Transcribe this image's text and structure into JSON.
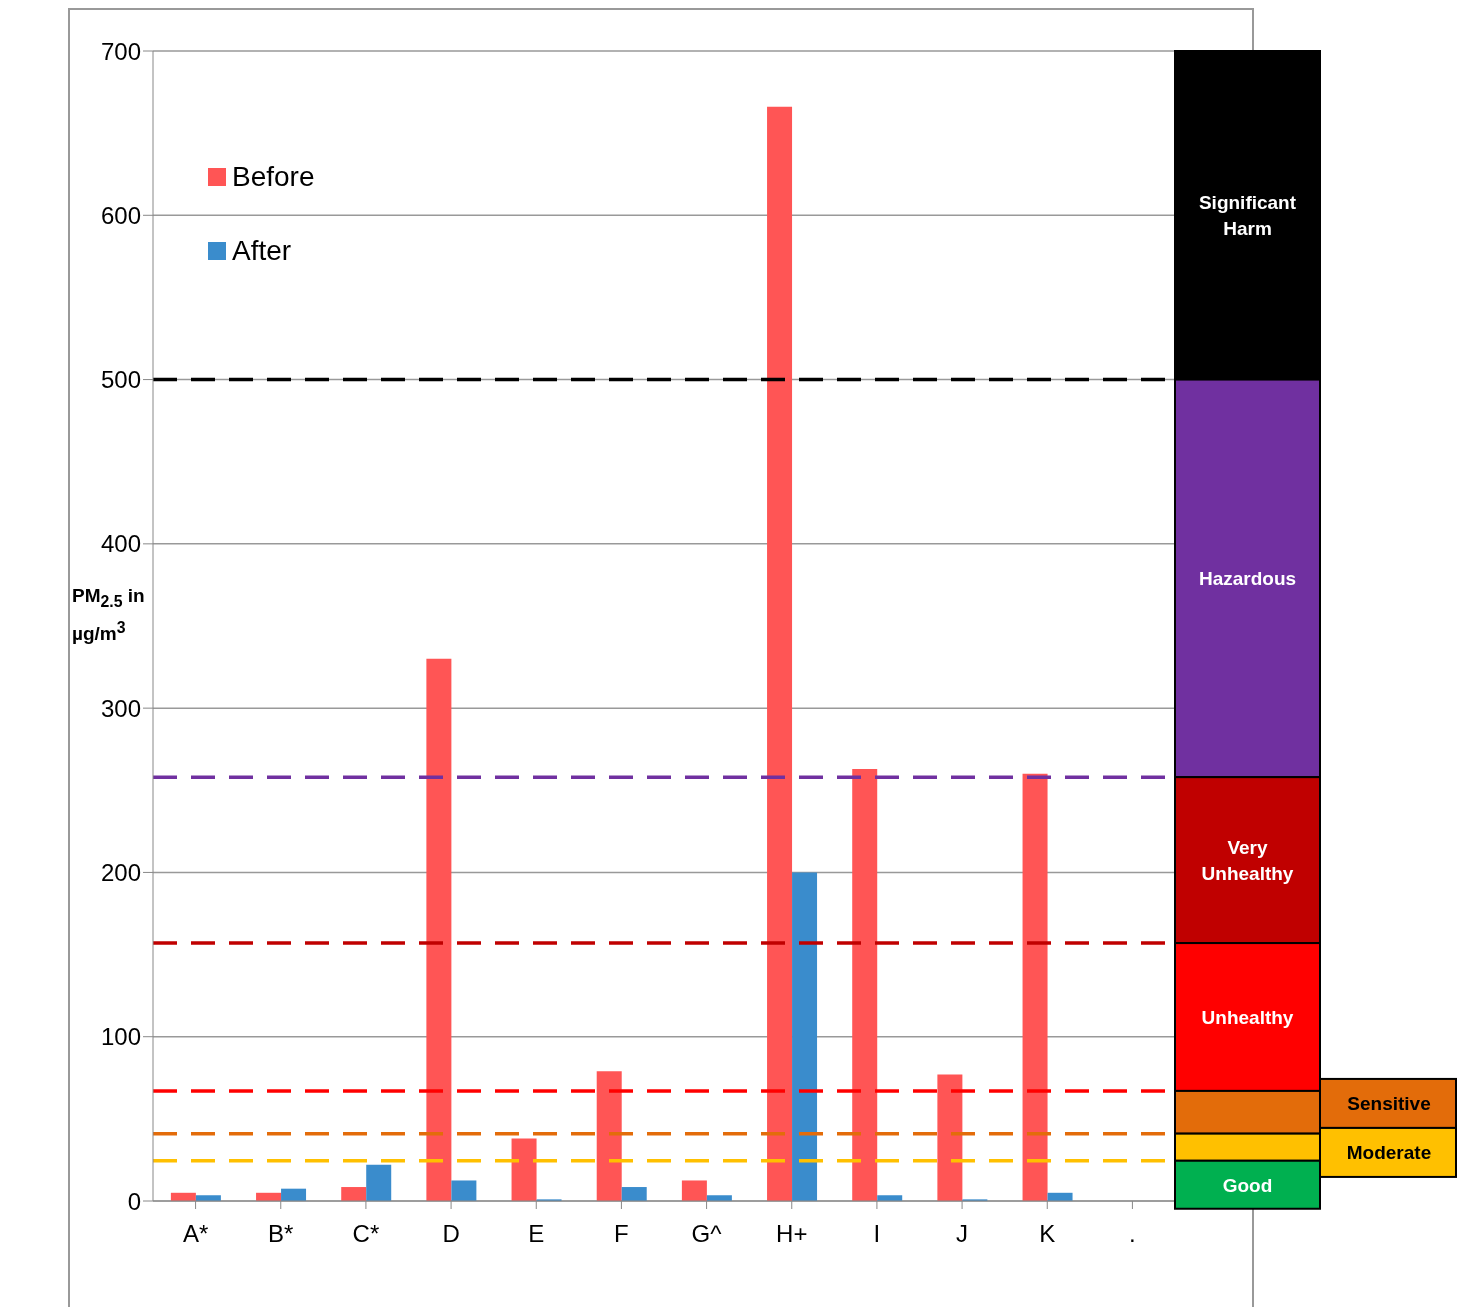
{
  "chart_data": {
    "type": "bar",
    "ylabel": "PM$_{2.5}$ in µg/m$^{3}$",
    "categories": [
      "A*",
      "B*",
      "C*",
      "D",
      "E",
      "F",
      "G^",
      "H+",
      "I",
      "J",
      "K",
      "."
    ],
    "series": [
      {
        "name": "Before",
        "color": "#ff5555",
        "values": [
          5,
          5,
          8.5,
          330,
          38,
          79,
          12.5,
          666,
          263,
          77,
          260,
          null
        ]
      },
      {
        "name": "After",
        "color": "#3a8ccc",
        "values": [
          3.5,
          7.5,
          22,
          12.5,
          1,
          8.5,
          3.5,
          200,
          3.5,
          1,
          5,
          null
        ]
      }
    ],
    "ylim": [
      0,
      700
    ],
    "yticks": [
      0,
      100,
      200,
      300,
      400,
      500,
      600,
      700
    ],
    "grid": "y",
    "legend": "top left",
    "ref_lines": [
      {
        "axis": "y",
        "value": 500,
        "color": "#000000",
        "line_style": "dashed"
      },
      {
        "axis": "y",
        "value": 258,
        "color": "#7030a0",
        "line_style": "dashed"
      },
      {
        "axis": "y",
        "value": 157,
        "color": "#c00000",
        "line_style": "dashed"
      },
      {
        "axis": "y",
        "value": 67,
        "color": "#ff0000",
        "line_style": "dashed"
      },
      {
        "axis": "y",
        "value": 41,
        "color": "#e36c0a",
        "line_style": "dashed"
      },
      {
        "axis": "y",
        "value": 24.5,
        "color": "#ffc000",
        "line_style": "dashed"
      }
    ],
    "annotations": [
      "Significant Harm",
      "Hazardous",
      "Very Unhealthy",
      "Unhealthy",
      "Sensitive",
      "Moderate",
      "Good"
    ]
  }
}
